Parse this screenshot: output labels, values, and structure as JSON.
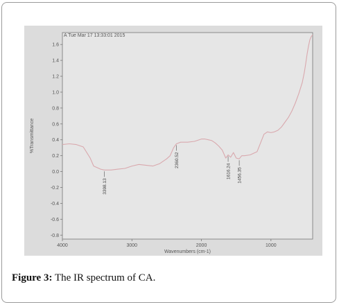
{
  "figure": {
    "caption_label": "Figure 3:",
    "caption_text": " The IR spectrum of CA."
  },
  "chart_data": {
    "type": "line",
    "title": "A Tue Mar 17 13:33:01 2015",
    "xlabel": "Wavenumbers (cm-1)",
    "ylabel": "%Transmittance",
    "xlim": [
      4000,
      400
    ],
    "ylim": [
      -0.85,
      1.75
    ],
    "x_ticks": [
      4000,
      3000,
      2000,
      1000
    ],
    "y_ticks": [
      1.6,
      1.4,
      1.2,
      1.0,
      0.8,
      0.6,
      0.4,
      0.2,
      0.0,
      -0.2,
      -0.4,
      -0.6,
      -0.8
    ],
    "y_tick_labels": [
      "1.6",
      "1.4",
      "1.2",
      "1.0",
      "0.8",
      "0.6",
      "0.4",
      "0.2",
      "0.0",
      "-0.2",
      "-0.4",
      "-0.6",
      "-0.8"
    ],
    "line_color": "#d9a8ad",
    "grid": false,
    "series": [
      {
        "x": [
          4000,
          3900,
          3800,
          3700,
          3600,
          3550,
          3450,
          3398,
          3300,
          3200,
          3100,
          3000,
          2900,
          2800,
          2700,
          2600,
          2500,
          2450,
          2400,
          2360,
          2300,
          2200,
          2100,
          2000,
          1950,
          1900,
          1850,
          1800,
          1750,
          1700,
          1650,
          1616,
          1580,
          1540,
          1500,
          1456,
          1420,
          1380,
          1300,
          1200,
          1100,
          1050,
          1000,
          950,
          900,
          850,
          800,
          750,
          700,
          650,
          600,
          550,
          520,
          500,
          480,
          460,
          440,
          420,
          400
        ],
        "y": [
          0.34,
          0.35,
          0.34,
          0.31,
          0.17,
          0.07,
          0.03,
          0.02,
          0.02,
          0.03,
          0.04,
          0.07,
          0.09,
          0.08,
          0.07,
          0.1,
          0.16,
          0.2,
          0.3,
          0.35,
          0.37,
          0.37,
          0.38,
          0.41,
          0.41,
          0.4,
          0.39,
          0.36,
          0.32,
          0.27,
          0.17,
          0.21,
          0.18,
          0.24,
          0.17,
          0.16,
          0.2,
          0.2,
          0.21,
          0.25,
          0.47,
          0.5,
          0.49,
          0.5,
          0.52,
          0.56,
          0.62,
          0.68,
          0.76,
          0.86,
          0.98,
          1.12,
          1.25,
          1.36,
          1.48,
          1.58,
          1.66,
          1.7,
          1.72
        ]
      }
    ],
    "annotations": [
      {
        "x": 3398,
        "label": "3398.13"
      },
      {
        "x": 2360,
        "label": "2360.52"
      },
      {
        "x": 1616,
        "label": "1616.24"
      },
      {
        "x": 1456,
        "label": "1456.35"
      }
    ]
  }
}
